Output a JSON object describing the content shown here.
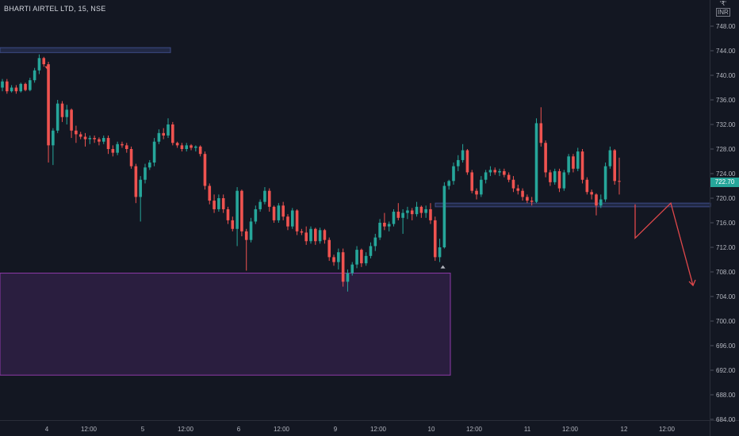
{
  "header": {
    "title": "BHARTI AIRTEL LTD, 15, NSE",
    "currency_top": "ʹ₹ʹ",
    "currency": "INR"
  },
  "last_price_label": "722.70",
  "colors": {
    "up": "#26a69a",
    "down": "#ef5350",
    "background": "#131722",
    "zone_blue": "#3d4b86",
    "zone_purple": "#8e3aa8",
    "projection": "#e0484b"
  },
  "chart_data": {
    "type": "candlestick",
    "title": "",
    "y_axis": {
      "ticks": [
        "748.00",
        "744.00",
        "740.00",
        "736.00",
        "732.00",
        "728.00",
        "724.00",
        "720.00",
        "716.00",
        "712.00",
        "708.00",
        "704.00",
        "700.00",
        "696.00",
        "692.00",
        "688.00",
        "684.00"
      ],
      "range": [
        684,
        750
      ]
    },
    "x_axis": {
      "ticks": [
        "4",
        "12:00",
        "5",
        "12:00",
        "6",
        "12:00",
        "9",
        "12:00",
        "10",
        "12:00",
        "11",
        "12:00",
        "12",
        "12:00"
      ]
    },
    "zones": [
      {
        "type": "supply",
        "low": 743.7,
        "high": 744.5,
        "color": "blue"
      },
      {
        "type": "demand",
        "low": 691.2,
        "high": 707.8,
        "color": "purple"
      },
      {
        "type": "resistance-line",
        "low": 718.6,
        "high": 719.2,
        "color": "blue"
      }
    ],
    "projection_path": [
      719.0,
      713.5,
      719.2,
      705.8
    ],
    "candles": [
      [
        738.0,
        739.4,
        737.4,
        739.0
      ],
      [
        739.0,
        739.4,
        737.0,
        737.4
      ],
      [
        737.4,
        738.4,
        737.2,
        738.0
      ],
      [
        738.0,
        738.4,
        737.0,
        737.4
      ],
      [
        737.4,
        738.8,
        737.2,
        738.6
      ],
      [
        738.6,
        738.8,
        737.4,
        737.6
      ],
      [
        737.6,
        739.6,
        737.4,
        739.2
      ],
      [
        739.2,
        741.2,
        738.8,
        740.8
      ],
      [
        740.8,
        743.4,
        740.2,
        742.8
      ],
      [
        742.8,
        743.0,
        741.4,
        741.8
      ],
      [
        741.8,
        742.2,
        725.8,
        728.6
      ],
      [
        728.6,
        731.4,
        725.4,
        731.0
      ],
      [
        731.0,
        736.0,
        730.6,
        735.4
      ],
      [
        735.4,
        735.8,
        732.4,
        733.2
      ],
      [
        733.2,
        735.2,
        732.0,
        734.4
      ],
      [
        734.4,
        734.6,
        729.8,
        731.0
      ],
      [
        731.0,
        731.8,
        729.0,
        730.4
      ],
      [
        730.4,
        730.8,
        729.6,
        730.0
      ],
      [
        730.0,
        730.6,
        728.4,
        729.6
      ],
      [
        729.6,
        730.2,
        728.8,
        729.8
      ],
      [
        729.8,
        730.2,
        729.0,
        729.6
      ],
      [
        729.6,
        729.9,
        728.6,
        729.2
      ],
      [
        729.2,
        730.2,
        728.8,
        729.8
      ],
      [
        729.8,
        730.2,
        727.2,
        728.0
      ],
      [
        728.0,
        728.6,
        726.8,
        727.4
      ],
      [
        727.4,
        729.2,
        727.0,
        728.8
      ],
      [
        728.8,
        729.2,
        728.2,
        728.6
      ],
      [
        728.6,
        729.0,
        727.4,
        728.0
      ],
      [
        728.0,
        728.4,
        724.8,
        725.2
      ],
      [
        725.2,
        725.6,
        719.2,
        720.2
      ],
      [
        720.2,
        723.6,
        716.2,
        723.0
      ],
      [
        723.0,
        725.6,
        722.4,
        725.0
      ],
      [
        725.0,
        726.2,
        724.6,
        725.8
      ],
      [
        725.8,
        729.8,
        725.2,
        729.2
      ],
      [
        729.2,
        731.2,
        728.8,
        730.6
      ],
      [
        730.6,
        731.4,
        729.6,
        730.2
      ],
      [
        730.2,
        733.0,
        729.8,
        732.0
      ],
      [
        732.0,
        732.4,
        728.6,
        729.0
      ],
      [
        729.0,
        729.2,
        728.2,
        728.6
      ],
      [
        728.6,
        729.0,
        727.6,
        728.0
      ],
      [
        728.0,
        729.0,
        727.6,
        728.6
      ],
      [
        728.6,
        728.8,
        727.8,
        728.2
      ],
      [
        728.2,
        728.6,
        727.6,
        728.4
      ],
      [
        728.4,
        728.6,
        726.8,
        727.2
      ],
      [
        727.2,
        727.6,
        721.4,
        722.0
      ],
      [
        722.0,
        722.4,
        719.0,
        719.6
      ],
      [
        719.6,
        720.6,
        717.6,
        718.2
      ],
      [
        718.2,
        720.6,
        717.8,
        720.0
      ],
      [
        720.0,
        720.6,
        717.6,
        718.2
      ],
      [
        718.2,
        718.6,
        715.8,
        716.4
      ],
      [
        716.4,
        717.0,
        714.6,
        715.0
      ],
      [
        715.0,
        721.8,
        712.2,
        721.2
      ],
      [
        721.2,
        721.4,
        713.8,
        714.6
      ],
      [
        714.6,
        715.0,
        708.2,
        713.2
      ],
      [
        713.2,
        716.8,
        712.8,
        716.2
      ],
      [
        716.2,
        718.8,
        715.8,
        718.2
      ],
      [
        718.2,
        719.8,
        717.8,
        719.4
      ],
      [
        719.4,
        721.8,
        719.0,
        721.2
      ],
      [
        721.2,
        721.6,
        717.8,
        718.6
      ],
      [
        718.6,
        718.8,
        716.0,
        716.4
      ],
      [
        716.4,
        719.2,
        716.0,
        718.8
      ],
      [
        718.8,
        719.4,
        716.4,
        717.0
      ],
      [
        717.0,
        717.4,
        714.8,
        715.4
      ],
      [
        715.4,
        718.4,
        715.0,
        718.0
      ],
      [
        718.0,
        718.2,
        714.0,
        714.6
      ],
      [
        714.6,
        715.0,
        714.0,
        714.4
      ],
      [
        714.4,
        715.4,
        712.4,
        713.0
      ],
      [
        713.0,
        715.4,
        712.6,
        715.0
      ],
      [
        715.0,
        715.2,
        712.4,
        713.0
      ],
      [
        713.0,
        715.2,
        712.6,
        714.8
      ],
      [
        714.8,
        715.0,
        712.6,
        713.2
      ],
      [
        713.2,
        713.6,
        709.8,
        710.4
      ],
      [
        710.4,
        710.8,
        709.0,
        709.6
      ],
      [
        709.6,
        711.8,
        708.4,
        711.2
      ],
      [
        711.2,
        711.8,
        705.6,
        706.4
      ],
      [
        706.4,
        708.4,
        704.8,
        707.8
      ],
      [
        707.8,
        709.6,
        707.4,
        709.2
      ],
      [
        709.2,
        712.2,
        708.6,
        711.6
      ],
      [
        711.6,
        711.8,
        708.8,
        709.4
      ],
      [
        709.4,
        711.2,
        709.0,
        710.6
      ],
      [
        710.6,
        712.8,
        710.2,
        712.2
      ],
      [
        712.2,
        714.2,
        711.4,
        713.6
      ],
      [
        713.6,
        716.6,
        713.2,
        716.0
      ],
      [
        716.0,
        717.6,
        714.8,
        715.4
      ],
      [
        715.4,
        716.2,
        714.6,
        715.8
      ],
      [
        715.8,
        718.2,
        715.4,
        717.8
      ],
      [
        717.8,
        719.2,
        716.4,
        716.8
      ],
      [
        716.8,
        718.2,
        714.2,
        717.6
      ],
      [
        717.6,
        718.6,
        716.6,
        718.0
      ],
      [
        718.0,
        718.4,
        716.4,
        717.4
      ],
      [
        717.4,
        719.4,
        717.0,
        718.6
      ],
      [
        718.6,
        718.8,
        716.8,
        717.6
      ],
      [
        717.6,
        718.8,
        716.8,
        718.2
      ],
      [
        718.2,
        719.2,
        715.8,
        716.4
      ],
      [
        716.4,
        717.0,
        709.8,
        710.4
      ],
      [
        710.4,
        713.4,
        709.6,
        712.0
      ],
      [
        712.0,
        722.6,
        711.8,
        722.0
      ],
      [
        722.0,
        723.0,
        721.4,
        722.8
      ],
      [
        722.8,
        725.8,
        722.2,
        725.2
      ],
      [
        725.2,
        727.0,
        724.4,
        726.2
      ],
      [
        726.2,
        728.8,
        725.8,
        727.8
      ],
      [
        727.8,
        728.0,
        723.8,
        724.2
      ],
      [
        724.2,
        724.6,
        720.8,
        721.2
      ],
      [
        721.2,
        721.6,
        719.8,
        720.6
      ],
      [
        720.6,
        723.6,
        720.2,
        723.0
      ],
      [
        723.0,
        724.6,
        722.4,
        724.2
      ],
      [
        724.2,
        725.2,
        723.6,
        724.6
      ],
      [
        724.6,
        725.0,
        723.8,
        724.2
      ],
      [
        724.2,
        724.8,
        723.6,
        724.4
      ],
      [
        724.4,
        724.8,
        723.4,
        723.8
      ],
      [
        723.8,
        724.2,
        722.6,
        723.0
      ],
      [
        723.0,
        723.6,
        721.0,
        721.6
      ],
      [
        721.6,
        722.2,
        720.6,
        721.2
      ],
      [
        721.2,
        721.6,
        719.6,
        720.2
      ],
      [
        720.2,
        720.6,
        719.2,
        719.6
      ],
      [
        719.6,
        720.2,
        718.8,
        719.4
      ],
      [
        719.4,
        733.0,
        719.2,
        732.2
      ],
      [
        732.2,
        734.8,
        728.4,
        729.0
      ],
      [
        729.0,
        729.4,
        723.4,
        724.2
      ],
      [
        724.2,
        724.6,
        722.0,
        722.6
      ],
      [
        722.6,
        724.8,
        722.2,
        724.4
      ],
      [
        724.4,
        724.8,
        721.0,
        721.6
      ],
      [
        721.6,
        724.6,
        721.2,
        724.2
      ],
      [
        724.2,
        727.2,
        723.8,
        726.8
      ],
      [
        726.8,
        727.2,
        724.2,
        724.8
      ],
      [
        724.8,
        728.2,
        724.4,
        727.6
      ],
      [
        727.6,
        728.0,
        722.4,
        723.0
      ],
      [
        723.0,
        723.4,
        720.6,
        721.0
      ],
      [
        721.0,
        721.4,
        719.8,
        720.6
      ],
      [
        720.6,
        720.8,
        717.2,
        718.8
      ],
      [
        718.8,
        720.6,
        718.4,
        719.8
      ],
      [
        719.8,
        725.8,
        719.4,
        725.2
      ],
      [
        725.2,
        728.4,
        724.8,
        727.8
      ],
      [
        727.8,
        728.0,
        722.2,
        722.8
      ],
      [
        722.8,
        726.6,
        720.6,
        722.7
      ]
    ]
  }
}
